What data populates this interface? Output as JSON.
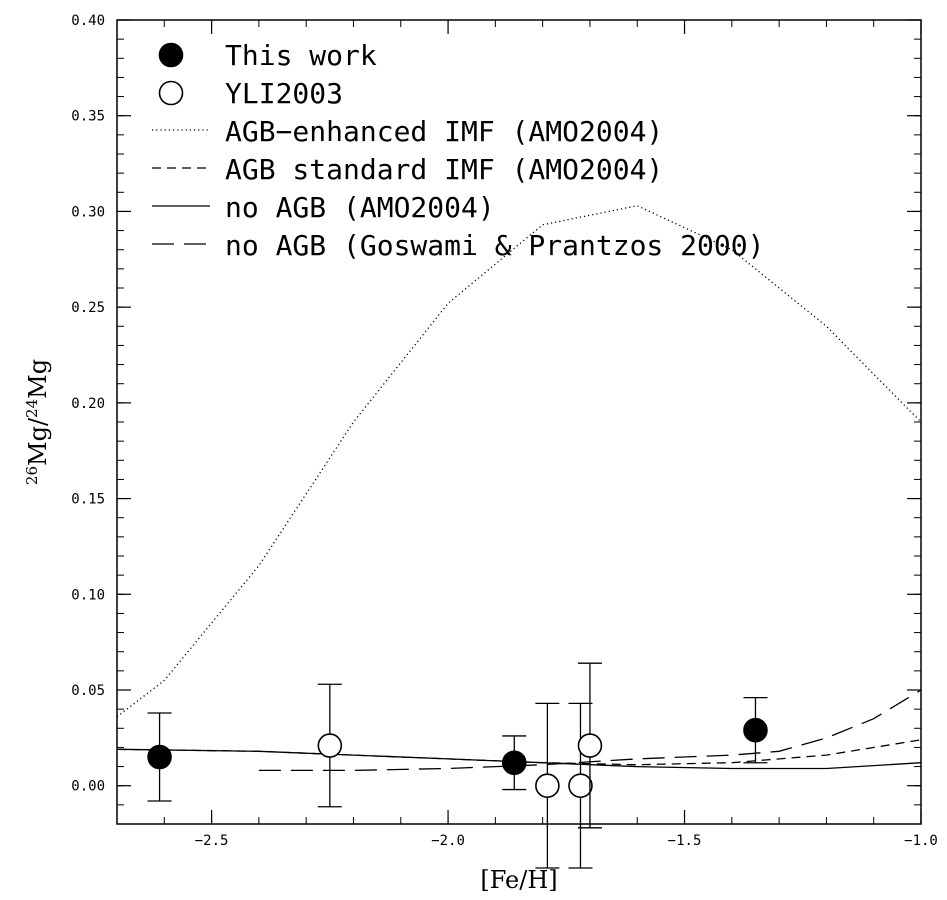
{
  "chart_data": {
    "type": "scatter",
    "xlabel": "[Fe/H]",
    "ylabel_parts": {
      "sup1": "26",
      "mid": "Mg/",
      "sup2": "24",
      "tail": "Mg"
    },
    "xlim": [
      -2.7,
      -1.0
    ],
    "ylim": [
      -0.02,
      0.4
    ],
    "x_ticks": [
      -2.5,
      -2.0,
      -1.5,
      -1.0
    ],
    "x_tick_labels": [
      "−2.5",
      "−2.0",
      "−1.5",
      "−1.0"
    ],
    "y_ticks": [
      0.0,
      0.05,
      0.1,
      0.15,
      0.2,
      0.25,
      0.3,
      0.35,
      0.4
    ],
    "y_tick_labels": [
      "0.00",
      "0.05",
      "0.10",
      "0.15",
      "0.20",
      "0.25",
      "0.30",
      "0.35",
      "0.40"
    ],
    "grid": false,
    "legend_position": "top-left",
    "series": [
      {
        "name": "This work",
        "kind": "points",
        "marker": "filled-circle",
        "points": [
          {
            "x": -2.61,
            "y": 0.015,
            "err": 0.023
          },
          {
            "x": -1.86,
            "y": 0.012,
            "err": 0.014
          },
          {
            "x": -1.35,
            "y": 0.029,
            "err": 0.017
          }
        ]
      },
      {
        "name": "YLI2003",
        "kind": "points",
        "marker": "open-circle",
        "points": [
          {
            "x": -2.25,
            "y": 0.021,
            "err": 0.032
          },
          {
            "x": -1.79,
            "y": 0.0,
            "err": 0.043
          },
          {
            "x": -1.72,
            "y": 0.0,
            "err": 0.043
          },
          {
            "x": -1.7,
            "y": 0.021,
            "err": 0.043
          }
        ]
      },
      {
        "name": "AGB−enhanced IMF (AMO2004)",
        "kind": "line",
        "dash": "dotted",
        "x": [
          -2.7,
          -2.6,
          -2.4,
          -2.2,
          -2.0,
          -1.8,
          -1.6,
          -1.4,
          -1.2,
          -1.0
        ],
        "y": [
          0.036,
          0.055,
          0.115,
          0.19,
          0.252,
          0.293,
          0.303,
          0.28,
          0.24,
          0.19
        ]
      },
      {
        "name": "AGB standard IMF (AMO2004)",
        "kind": "line",
        "dash": "short-dash",
        "x": [
          -2.7,
          -2.4,
          -2.2,
          -2.0,
          -1.8,
          -1.6,
          -1.4,
          -1.2,
          -1.0
        ],
        "y": [
          0.019,
          0.018,
          0.016,
          0.014,
          0.012,
          0.011,
          0.012,
          0.016,
          0.024
        ]
      },
      {
        "name": "no AGB (AMO2004)",
        "kind": "line",
        "dash": "solid",
        "x": [
          -2.7,
          -2.4,
          -2.2,
          -2.0,
          -1.8,
          -1.6,
          -1.4,
          -1.2,
          -1.0
        ],
        "y": [
          0.019,
          0.018,
          0.016,
          0.014,
          0.012,
          0.01,
          0.009,
          0.009,
          0.012
        ]
      },
      {
        "name": "no AGB (Goswami & Prantzos 2000)",
        "kind": "line",
        "dash": "long-dash",
        "x": [
          -2.4,
          -2.2,
          -2.0,
          -1.8,
          -1.6,
          -1.4,
          -1.3,
          -1.2,
          -1.1,
          -1.0
        ],
        "y": [
          0.008,
          0.008,
          0.009,
          0.011,
          0.014,
          0.016,
          0.018,
          0.025,
          0.035,
          0.05
        ]
      }
    ]
  }
}
